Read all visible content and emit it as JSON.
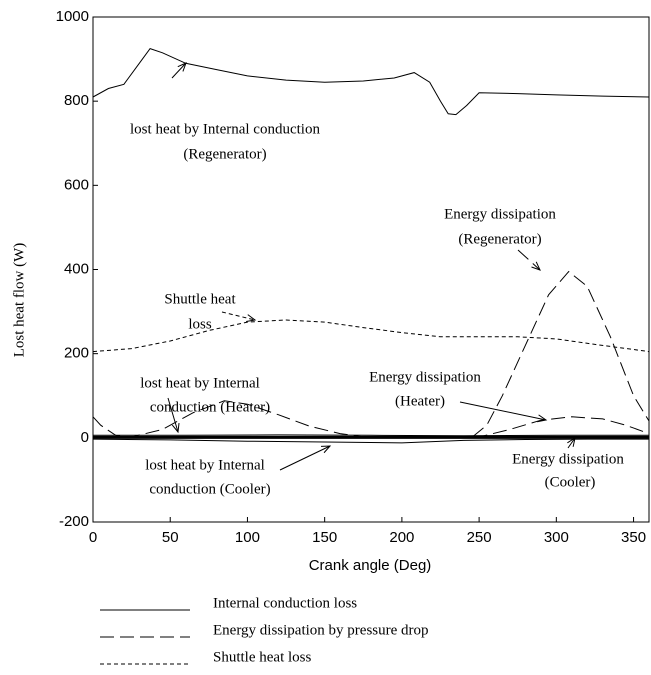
{
  "chart_data": {
    "type": "line",
    "xlabel": "Crank angle (Deg)",
    "ylabel": "Lost heat flow (W)",
    "xlim": [
      0,
      360
    ],
    "ylim": [
      -200,
      1000
    ],
    "xticks": [
      0,
      50,
      100,
      150,
      200,
      250,
      300,
      350
    ],
    "yticks": [
      -200,
      0,
      200,
      400,
      600,
      800,
      1000
    ],
    "legend": [
      {
        "label": "Internal conduction loss",
        "dash": "solid"
      },
      {
        "label": "Energy dissipation by pressure drop",
        "dash": "dashed"
      },
      {
        "label": "Shuttle heat loss",
        "dash": "dotted"
      }
    ],
    "series": [
      {
        "style": 0,
        "color": "#000000",
        "width": 1,
        "x": [
          0,
          10,
          20,
          30,
          37,
          45,
          60,
          80,
          100,
          125,
          150,
          175,
          195,
          208,
          218,
          225,
          230,
          235,
          242,
          250,
          275,
          300,
          330,
          360
        ],
        "values": [
          810,
          830,
          840,
          890,
          925,
          915,
          890,
          875,
          860,
          850,
          845,
          848,
          855,
          868,
          845,
          800,
          770,
          768,
          790,
          820,
          818,
          815,
          812,
          810
        ]
      },
      {
        "style": 2,
        "color": "#000000",
        "width": 1,
        "x": [
          0,
          25,
          50,
          75,
          100,
          125,
          150,
          175,
          200,
          225,
          250,
          275,
          300,
          325,
          350,
          360
        ],
        "values": [
          205,
          212,
          230,
          255,
          275,
          280,
          275,
          262,
          250,
          240,
          240,
          240,
          235,
          222,
          210,
          205
        ]
      },
      {
        "style": 1,
        "color": "#000000",
        "width": 1,
        "x": [
          0,
          50,
          100,
          150,
          200,
          245,
          255,
          265,
          280,
          295,
          308,
          320,
          335,
          350,
          360
        ],
        "values": [
          0,
          0,
          0,
          0,
          0,
          0,
          30,
          100,
          220,
          340,
          395,
          360,
          240,
          100,
          40
        ]
      },
      {
        "style": 1,
        "color": "#000000",
        "width": 1,
        "x": [
          0,
          5,
          15,
          25,
          45,
          65,
          85,
          100,
          120,
          140,
          160,
          180,
          220,
          250,
          270,
          290,
          310,
          330,
          345,
          360
        ],
        "values": [
          50,
          30,
          5,
          2,
          20,
          60,
          88,
          80,
          55,
          28,
          10,
          0,
          0,
          2,
          20,
          42,
          50,
          45,
          30,
          10
        ]
      },
      {
        "style": 0,
        "color": "#000000",
        "width": 1,
        "x": [
          0,
          60,
          120,
          180,
          240,
          300,
          360
        ],
        "values": [
          6,
          6,
          7,
          6,
          5,
          6,
          6
        ]
      },
      {
        "style": 0,
        "color": "#000000",
        "width": 1,
        "x": [
          0,
          50,
          100,
          150,
          200,
          240,
          280,
          320,
          360
        ],
        "values": [
          -3,
          -5,
          -8,
          -10,
          -12,
          -6,
          -4,
          -3,
          -3
        ]
      },
      {
        "style": 0,
        "color": "#000000",
        "width": 3,
        "x": [
          0,
          90,
          180,
          270,
          360
        ],
        "values": [
          1,
          1,
          1,
          1,
          1
        ]
      }
    ],
    "annotations": [
      [
        "lost heat by Internal conduction",
        "(Regenerator)"
      ],
      [
        "Shuttle heat",
        "loss"
      ],
      [
        "Energy dissipation",
        "(Regenerator)"
      ],
      [
        "lost heat by Internal",
        "conduction (Heater)"
      ],
      [
        "Energy dissipation",
        "(Heater)"
      ],
      [
        "lost heat by Internal",
        "conduction (Cooler)"
      ],
      [
        "Energy dissipation",
        "(Cooler)"
      ]
    ]
  }
}
